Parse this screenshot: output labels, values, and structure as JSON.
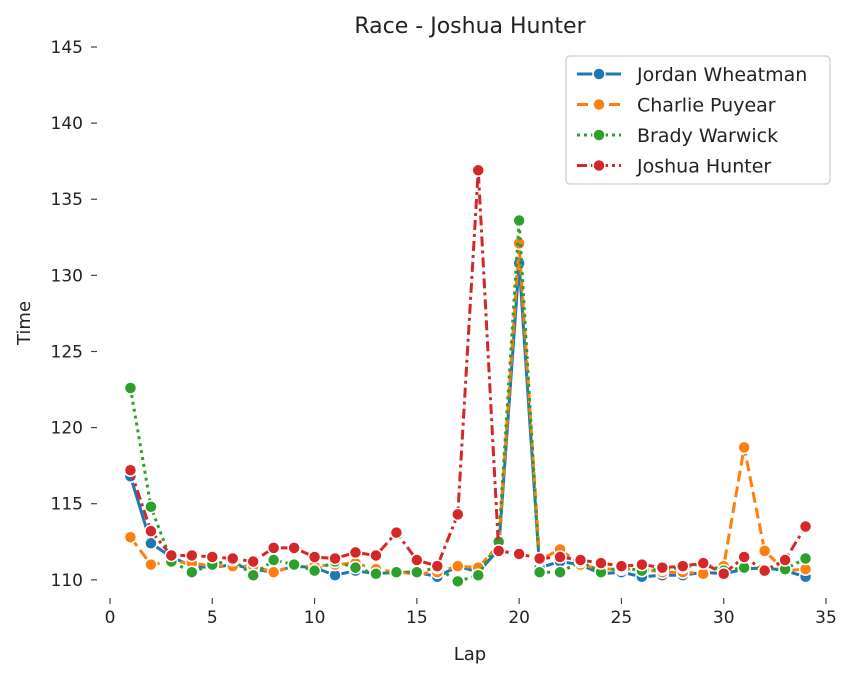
{
  "chart_data": {
    "type": "line",
    "title": "Race - Joshua Hunter",
    "xlabel": "Lap",
    "ylabel": "Time",
    "xlim": [
      0,
      35
    ],
    "ylim": [
      109.2,
      145
    ],
    "x_ticks": [
      0,
      5,
      10,
      15,
      20,
      25,
      30,
      35
    ],
    "y_ticks": [
      110,
      115,
      120,
      125,
      130,
      135,
      140,
      145
    ],
    "grid": false,
    "legend_position": "top-right",
    "x": [
      1,
      2,
      3,
      4,
      5,
      6,
      7,
      8,
      9,
      10,
      11,
      12,
      13,
      14,
      15,
      16,
      17,
      18,
      19,
      20,
      21,
      22,
      23,
      24,
      25,
      26,
      27,
      28,
      29,
      30,
      31,
      32,
      33,
      34
    ],
    "series": [
      {
        "name": "Jordan Wheatman",
        "color": "#1f77b4",
        "dash": "solid",
        "values": [
          116.8,
          112.4,
          111.5,
          110.9,
          110.8,
          111.0,
          110.7,
          110.5,
          110.9,
          110.8,
          110.3,
          110.6,
          110.4,
          110.5,
          110.5,
          110.2,
          110.9,
          110.5,
          112.0,
          130.8,
          110.8,
          111.2,
          111.0,
          110.4,
          110.5,
          110.2,
          110.3,
          110.3,
          110.5,
          110.4,
          110.7,
          110.8,
          110.6,
          110.2
        ]
      },
      {
        "name": "Charlie Puyear",
        "color": "#ff7f0e",
        "dash": "dashed",
        "values": [
          112.8,
          111.0,
          111.2,
          111.1,
          110.9,
          110.9,
          110.9,
          110.5,
          110.9,
          110.9,
          111.0,
          111.1,
          110.7,
          110.5,
          110.4,
          110.5,
          110.9,
          110.8,
          112.3,
          132.1,
          111.3,
          112.0,
          111.0,
          110.7,
          110.7,
          110.7,
          110.5,
          110.5,
          110.4,
          110.9,
          118.7,
          111.9,
          110.6,
          110.7
        ]
      },
      {
        "name": "Brady Warwick",
        "color": "#2ca02c",
        "dash": "dotted",
        "values": [
          122.6,
          114.8,
          111.2,
          110.5,
          111.0,
          111.3,
          110.3,
          111.3,
          111.0,
          110.6,
          111.2,
          110.8,
          110.4,
          110.5,
          110.5,
          110.8,
          109.9,
          110.3,
          112.5,
          133.6,
          110.5,
          110.5,
          111.2,
          110.5,
          110.8,
          110.6,
          110.7,
          110.8,
          111.1,
          110.6,
          110.8,
          110.7,
          110.7,
          111.4
        ]
      },
      {
        "name": "Joshua Hunter",
        "color": "#d62728",
        "dash": "dashdot",
        "values": [
          117.2,
          113.2,
          111.6,
          111.6,
          111.5,
          111.4,
          111.2,
          112.1,
          112.1,
          111.5,
          111.4,
          111.8,
          111.6,
          113.1,
          111.3,
          110.9,
          114.3,
          136.9,
          111.9,
          111.7,
          111.4,
          111.5,
          111.3,
          111.1,
          110.9,
          111.0,
          110.8,
          110.9,
          111.1,
          110.4,
          111.5,
          110.6,
          111.3,
          113.5
        ]
      }
    ]
  }
}
